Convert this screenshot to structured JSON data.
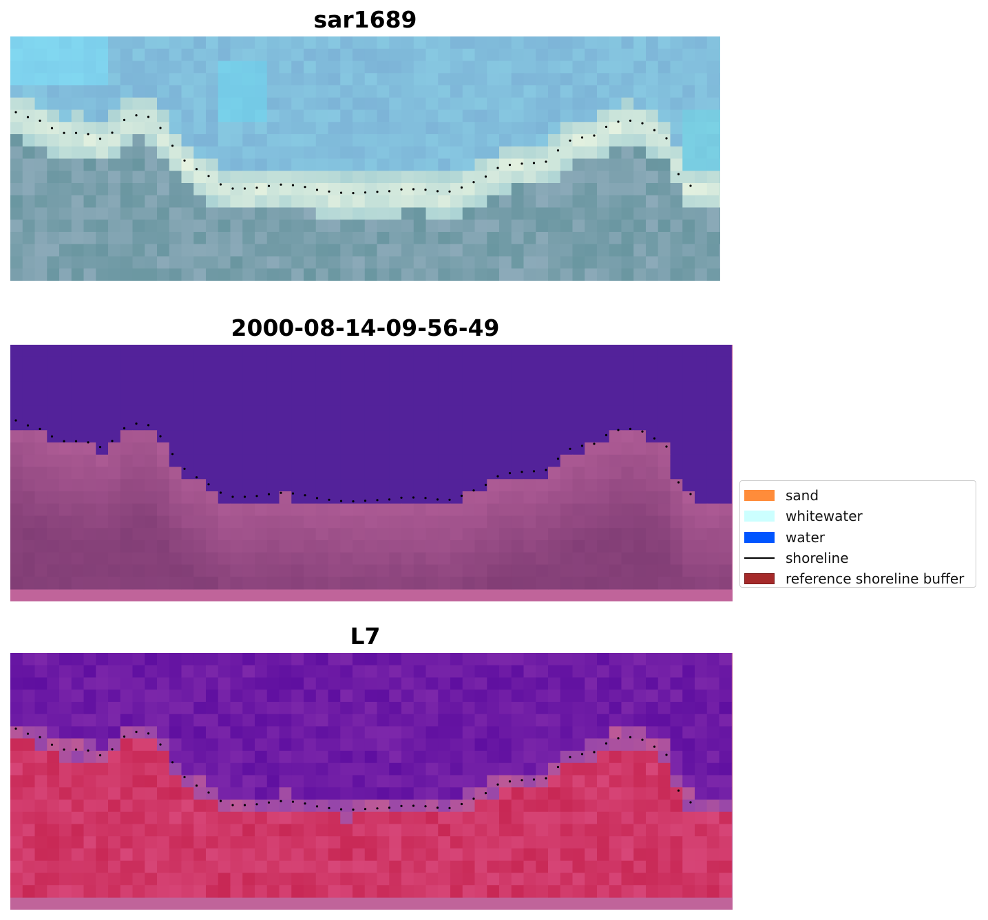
{
  "panels": [
    {
      "title": "sar1689",
      "type": "rgb"
    },
    {
      "title": "2000-08-14-09-56-49",
      "type": "classified"
    },
    {
      "title": "L7",
      "type": "index"
    }
  ],
  "legend": {
    "items": [
      {
        "label": "sand",
        "color": "#ff8c3a"
      },
      {
        "label": "whitewater",
        "color": "#ccffff"
      },
      {
        "label": "water",
        "color": "#0055ff"
      },
      {
        "label": "shoreline",
        "color": "#000000",
        "kind": "line"
      },
      {
        "label": "reference shoreline buffer",
        "color": "#a52a2a",
        "kind": "patch"
      }
    ]
  },
  "colors": {
    "water_class": "#53229a",
    "land_class": "#a85c93",
    "buffer_border": "#c0649a",
    "index_low": "#6a16a0",
    "index_high": "#c8153e"
  }
}
